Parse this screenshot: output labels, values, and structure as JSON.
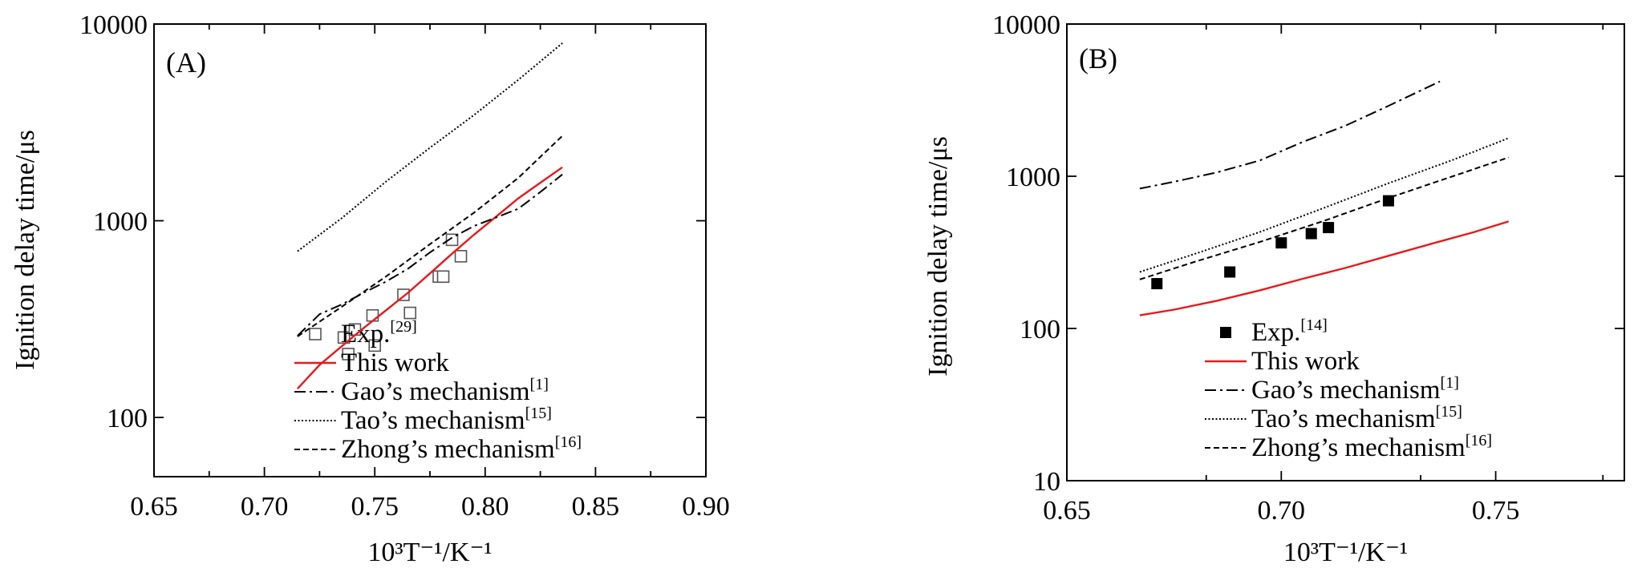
{
  "chart_data": [
    {
      "panel": "(A)",
      "type": "line",
      "xlabel": "10³T⁻¹/K⁻¹",
      "ylabel": "Ignition delay time/μs",
      "xlim": [
        0.65,
        0.9
      ],
      "ylim": [
        50,
        10000
      ],
      "yscale": "log",
      "xticks": [
        "0.65",
        "0.70",
        "0.75",
        "0.80",
        "0.85",
        "0.90"
      ],
      "yticks": [
        "100",
        "1000",
        "10000"
      ],
      "legend_position": "bottom-right",
      "series": [
        {
          "name": "Exp.",
          "ref": "[29]",
          "kind": "markers",
          "marker": "open-square",
          "color": "#555555",
          "points": [
            [
              0.736,
              255
            ],
            [
              0.738,
              210
            ],
            [
              0.741,
              280
            ],
            [
              0.749,
              330
            ],
            [
              0.75,
              232
            ],
            [
              0.763,
              420
            ],
            [
              0.766,
              340
            ],
            [
              0.779,
              520
            ],
            [
              0.781,
              520
            ],
            [
              0.785,
              800
            ],
            [
              0.789,
              660
            ]
          ]
        },
        {
          "name": "This work",
          "kind": "line",
          "style": "solid",
          "color": "#e8191c",
          "points": [
            [
              0.715,
              140
            ],
            [
              0.725,
              185
            ],
            [
              0.735,
              230
            ],
            [
              0.745,
              285
            ],
            [
              0.755,
              350
            ],
            [
              0.765,
              430
            ],
            [
              0.775,
              540
            ],
            [
              0.785,
              680
            ],
            [
              0.795,
              850
            ],
            [
              0.805,
              1050
            ],
            [
              0.815,
              1300
            ],
            [
              0.825,
              1560
            ],
            [
              0.835,
              1870
            ]
          ]
        },
        {
          "name": "Gao’s mechanism",
          "ref": "[1]",
          "kind": "line",
          "style": "dashdot",
          "color": "#000000",
          "points": [
            [
              0.715,
              260
            ],
            [
              0.725,
              335
            ],
            [
              0.735,
              375
            ],
            [
              0.745,
              430
            ],
            [
              0.755,
              490
            ],
            [
              0.765,
              570
            ],
            [
              0.775,
              690
            ],
            [
              0.785,
              820
            ],
            [
              0.795,
              940
            ],
            [
              0.805,
              1040
            ],
            [
              0.815,
              1150
            ],
            [
              0.825,
              1400
            ],
            [
              0.835,
              1720
            ]
          ]
        },
        {
          "name": "Tao’s mechanism",
          "ref": "[15]",
          "kind": "line",
          "style": "dotted",
          "color": "#000000",
          "points": [
            [
              0.715,
              700
            ],
            [
              0.735,
              1030
            ],
            [
              0.755,
              1580
            ],
            [
              0.775,
              2350
            ],
            [
              0.795,
              3450
            ],
            [
              0.815,
              5200
            ],
            [
              0.835,
              8000
            ]
          ]
        },
        {
          "name": "Zhong’s mechanism",
          "ref": "[16]",
          "kind": "line",
          "style": "dashed",
          "color": "#000000",
          "points": [
            [
              0.715,
              258
            ],
            [
              0.735,
              365
            ],
            [
              0.755,
              520
            ],
            [
              0.775,
              760
            ],
            [
              0.795,
              1100
            ],
            [
              0.815,
              1650
            ],
            [
              0.835,
              2700
            ]
          ]
        }
      ]
    },
    {
      "panel": "(B)",
      "type": "line",
      "xlabel": "10³T⁻¹/K⁻¹",
      "ylabel": "Ignition delay time/μs",
      "xlim": [
        0.65,
        0.78
      ],
      "ylim": [
        10,
        10000
      ],
      "yscale": "log",
      "xticks": [
        "0.65",
        "0.70",
        "0.75"
      ],
      "yticks": [
        "10",
        "100",
        "1000",
        "10000"
      ],
      "legend_position": "bottom-center",
      "series": [
        {
          "name": "Exp.",
          "ref": "[14]",
          "kind": "markers",
          "marker": "filled-square",
          "color": "#000000",
          "points": [
            [
              0.671,
              197
            ],
            [
              0.688,
              235
            ],
            [
              0.7,
              365
            ],
            [
              0.707,
              420
            ],
            [
              0.711,
              460
            ],
            [
              0.725,
              690
            ]
          ]
        },
        {
          "name": "This work",
          "kind": "line",
          "style": "solid",
          "color": "#e8191c",
          "points": [
            [
              0.667,
              122
            ],
            [
              0.675,
              133
            ],
            [
              0.685,
              152
            ],
            [
              0.695,
              178
            ],
            [
              0.705,
              212
            ],
            [
              0.715,
              250
            ],
            [
              0.725,
              300
            ],
            [
              0.735,
              360
            ],
            [
              0.745,
              430
            ],
            [
              0.753,
              505
            ]
          ]
        },
        {
          "name": "Gao’s mechanism",
          "ref": "[1]",
          "kind": "line",
          "style": "dashdot",
          "color": "#000000",
          "points": [
            [
              0.667,
              830
            ],
            [
              0.675,
              920
            ],
            [
              0.685,
              1060
            ],
            [
              0.695,
              1270
            ],
            [
              0.705,
              1680
            ],
            [
              0.715,
              2150
            ],
            [
              0.725,
              2900
            ],
            [
              0.737,
              4200
            ]
          ]
        },
        {
          "name": "Tao’s mechanism",
          "ref": "[15]",
          "kind": "line",
          "style": "dotted",
          "color": "#000000",
          "points": [
            [
              0.667,
              235
            ],
            [
              0.68,
              310
            ],
            [
              0.695,
              430
            ],
            [
              0.71,
              620
            ],
            [
              0.725,
              900
            ],
            [
              0.74,
              1280
            ],
            [
              0.753,
              1780
            ]
          ]
        },
        {
          "name": "Zhong’s mechanism",
          "ref": "[16]",
          "kind": "line",
          "style": "dashed",
          "color": "#000000",
          "points": [
            [
              0.667,
              210
            ],
            [
              0.68,
              275
            ],
            [
              0.695,
              370
            ],
            [
              0.71,
              510
            ],
            [
              0.725,
              720
            ],
            [
              0.74,
              1000
            ],
            [
              0.753,
              1330
            ]
          ]
        }
      ]
    }
  ]
}
